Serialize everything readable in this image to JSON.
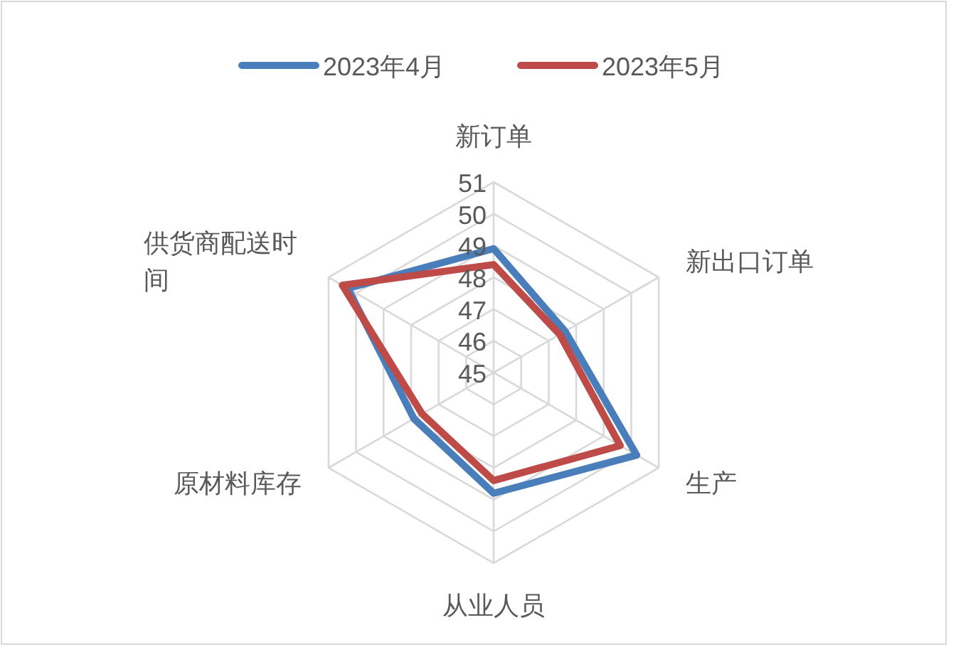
{
  "chart_data": {
    "type": "radar",
    "categories": [
      "新订单",
      "新出口订单",
      "生产",
      "从业人员",
      "原材料库存",
      "供货商配送时间"
    ],
    "series": [
      {
        "name": "2023年4月",
        "color": "#4a7ebb",
        "values": [
          48.9,
          47.6,
          50.2,
          48.8,
          47.9,
          50.3
        ]
      },
      {
        "name": "2023年5月",
        "color": "#be4b48",
        "values": [
          48.4,
          47.4,
          49.6,
          48.4,
          47.6,
          50.5
        ]
      }
    ],
    "ylim": [
      45,
      51
    ],
    "yticks": [
      45,
      46,
      47,
      48,
      49,
      50,
      51
    ],
    "legend": "top",
    "grid": true
  }
}
